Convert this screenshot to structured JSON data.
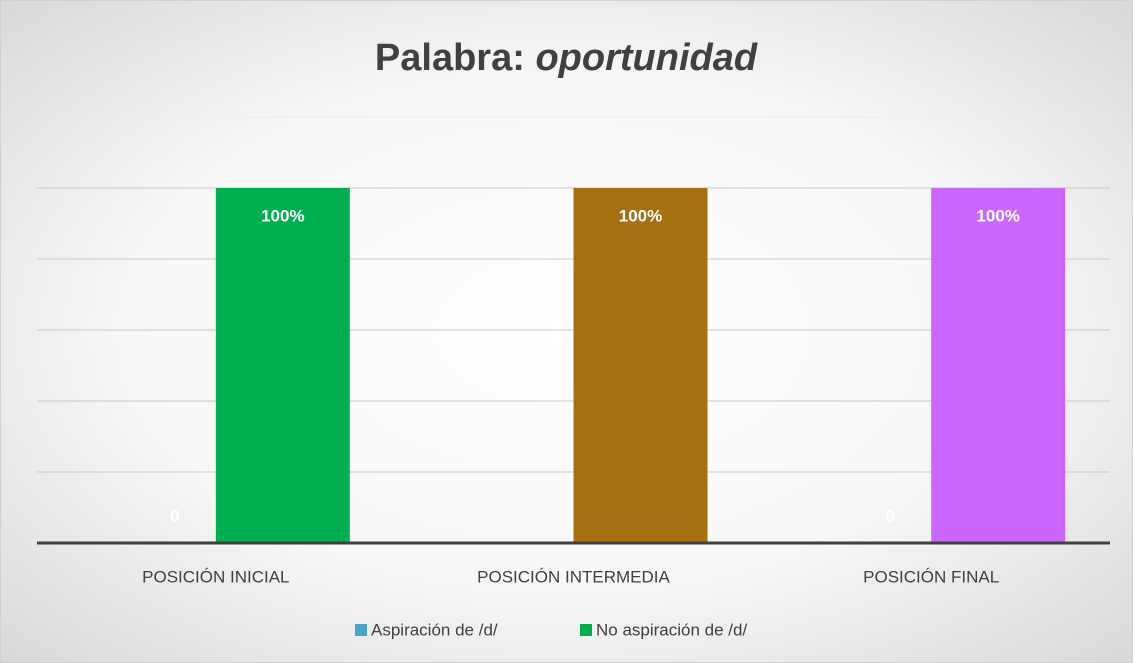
{
  "chart_data": {
    "type": "bar",
    "title": "Palabra:",
    "title_italic": "oportunidad",
    "categories": [
      "POSICIÓN INICIAL",
      "POSICIÓN INTERMEDIA",
      "POSICIÓN FINAL"
    ],
    "series": [
      {
        "name": "Aspiración de /d/",
        "color": "#4ba3c7",
        "values": [
          0,
          null,
          0
        ]
      },
      {
        "name": "No aspiración de /d/",
        "color": "#00b050",
        "bar_colors": [
          "#00b050",
          "#a5700f",
          "#cc66ff"
        ],
        "values": [
          100,
          100,
          100
        ],
        "value_labels": [
          "100%",
          "100%",
          "100%"
        ]
      }
    ],
    "ylim": [
      0,
      120
    ],
    "yticks": [
      0,
      20,
      40,
      60,
      80,
      100,
      120
    ],
    "grid": true,
    "legend": "bottom"
  }
}
